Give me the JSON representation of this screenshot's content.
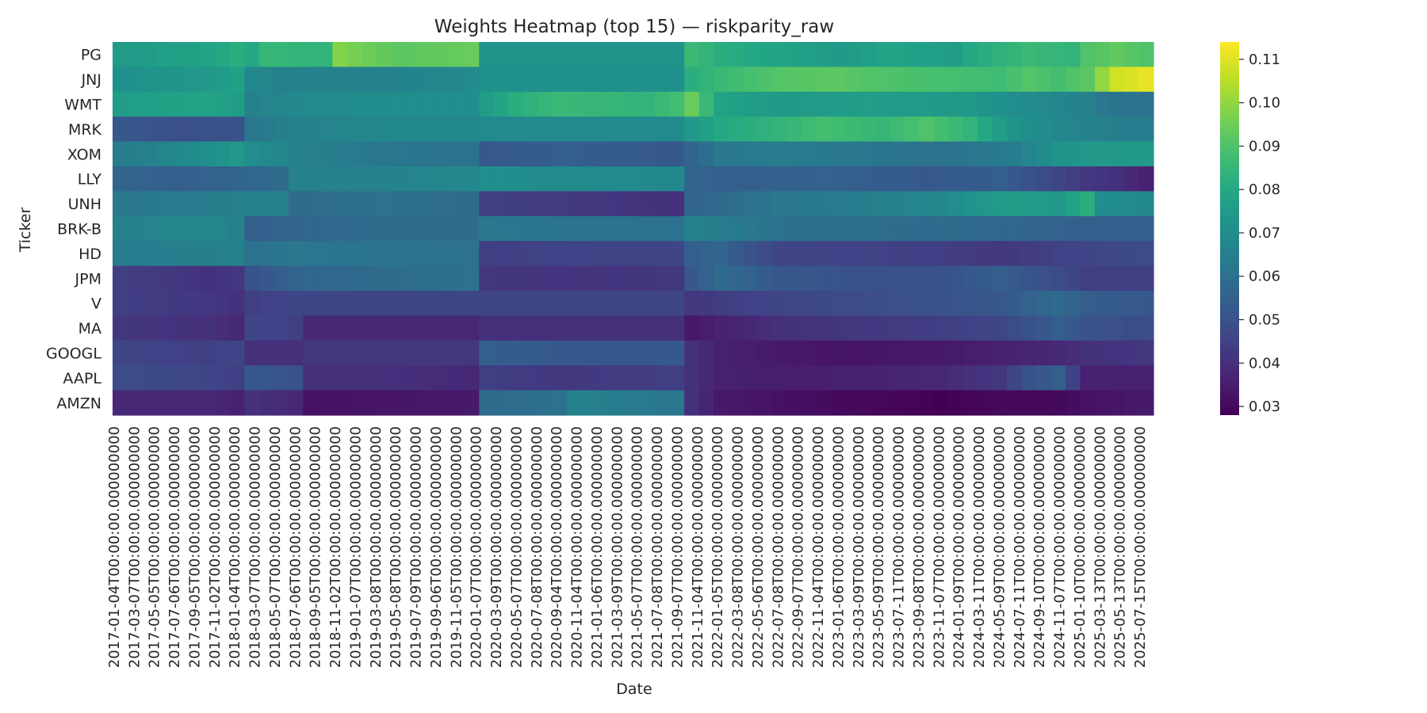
{
  "chart_data": {
    "type": "heatmap",
    "title": "Weights Heatmap (top 15) — riskparity_raw",
    "xlabel": "Date",
    "ylabel": "Ticker",
    "colormap": "viridis",
    "rows": [
      "PG",
      "JNJ",
      "WMT",
      "MRK",
      "XOM",
      "LLY",
      "UNH",
      "BRK-B",
      "HD",
      "JPM",
      "V",
      "MA",
      "GOOGL",
      "AAPL",
      "AMZN"
    ],
    "x_tick_labels": [
      "2017-01-04T00:00:00.000000000",
      "2017-03-07T00:00:00.000000000",
      "2017-05-05T00:00:00.000000000",
      "2017-07-06T00:00:00.000000000",
      "2017-09-05T00:00:00.000000000",
      "2017-11-02T00:00:00.000000000",
      "2018-01-04T00:00:00.000000000",
      "2018-03-07T00:00:00.000000000",
      "2018-05-07T00:00:00.000000000",
      "2018-07-06T00:00:00.000000000",
      "2018-09-05T00:00:00.000000000",
      "2018-11-02T00:00:00.000000000",
      "2019-01-07T00:00:00.000000000",
      "2019-03-08T00:00:00.000000000",
      "2019-05-08T00:00:00.000000000",
      "2019-07-09T00:00:00.000000000",
      "2019-09-06T00:00:00.000000000",
      "2019-11-05T00:00:00.000000000",
      "2020-01-07T00:00:00.000000000",
      "2020-03-09T00:00:00.000000000",
      "2020-05-07T00:00:00.000000000",
      "2020-07-08T00:00:00.000000000",
      "2020-09-04T00:00:00.000000000",
      "2020-11-04T00:00:00.000000000",
      "2021-01-06T00:00:00.000000000",
      "2021-03-09T00:00:00.000000000",
      "2021-05-07T00:00:00.000000000",
      "2021-07-08T00:00:00.000000000",
      "2021-09-07T00:00:00.000000000",
      "2021-11-04T00:00:00.000000000",
      "2022-01-05T00:00:00.000000000",
      "2022-03-08T00:00:00.000000000",
      "2022-05-06T00:00:00.000000000",
      "2022-07-08T00:00:00.000000000",
      "2022-09-07T00:00:00.000000000",
      "2022-11-04T00:00:00.000000000",
      "2023-01-06T00:00:00.000000000",
      "2023-03-09T00:00:00.000000000",
      "2023-05-09T00:00:00.000000000",
      "2023-07-11T00:00:00.000000000",
      "2023-09-08T00:00:00.000000000",
      "2023-11-07T00:00:00.000000000",
      "2024-01-09T00:00:00.000000000",
      "2024-03-11T00:00:00.000000000",
      "2024-05-09T00:00:00.000000000",
      "2024-07-11T00:00:00.000000000",
      "2024-09-10T00:00:00.000000000",
      "2024-11-07T00:00:00.000000000",
      "2025-01-10T00:00:00.000000000",
      "2025-03-13T00:00:00.000000000",
      "2025-05-13T00:00:00.000000000",
      "2025-07-15T00:00:00.000000000"
    ],
    "colorbar": {
      "ticks": [
        0.03,
        0.04,
        0.05,
        0.06,
        0.07,
        0.08,
        0.09,
        0.1,
        0.11
      ],
      "range": [
        0.028,
        0.114
      ]
    },
    "row_profiles": [
      [
        [
          0,
          0.075
        ],
        [
          6,
          0.078
        ],
        [
          8,
          0.082
        ],
        [
          9,
          0.08
        ],
        [
          10,
          0.085
        ],
        [
          14,
          0.084
        ],
        [
          15,
          0.098
        ],
        [
          16,
          0.096
        ],
        [
          19,
          0.092
        ],
        [
          24,
          0.094
        ],
        [
          25,
          0.072
        ],
        [
          38,
          0.072
        ],
        [
          39,
          0.086
        ],
        [
          41,
          0.082
        ],
        [
          45,
          0.078
        ],
        [
          48,
          0.076
        ],
        [
          49,
          0.074
        ],
        [
          52,
          0.078
        ],
        [
          57,
          0.076
        ],
        [
          58,
          0.08
        ],
        [
          62,
          0.086
        ],
        [
          65,
          0.084
        ],
        [
          66,
          0.09
        ],
        [
          68,
          0.093
        ],
        [
          70,
          0.09
        ]
      ],
      [
        [
          0,
          0.071
        ],
        [
          6,
          0.074
        ],
        [
          8,
          0.077
        ],
        [
          9,
          0.068
        ],
        [
          11,
          0.066
        ],
        [
          18,
          0.066
        ],
        [
          23,
          0.068
        ],
        [
          25,
          0.071
        ],
        [
          38,
          0.071
        ],
        [
          39,
          0.082
        ],
        [
          41,
          0.086
        ],
        [
          45,
          0.091
        ],
        [
          49,
          0.092
        ],
        [
          52,
          0.09
        ],
        [
          60,
          0.087
        ],
        [
          62,
          0.091
        ],
        [
          64,
          0.088
        ],
        [
          66,
          0.092
        ],
        [
          68,
          0.108
        ],
        [
          70,
          0.111
        ]
      ],
      [
        [
          0,
          0.076
        ],
        [
          6,
          0.078
        ],
        [
          8,
          0.076
        ],
        [
          9,
          0.066
        ],
        [
          12,
          0.068
        ],
        [
          18,
          0.07
        ],
        [
          24,
          0.07
        ],
        [
          25,
          0.076
        ],
        [
          27,
          0.082
        ],
        [
          30,
          0.086
        ],
        [
          36,
          0.084
        ],
        [
          38,
          0.088
        ],
        [
          39,
          0.094
        ],
        [
          41,
          0.078
        ],
        [
          45,
          0.074
        ],
        [
          50,
          0.076
        ],
        [
          58,
          0.074
        ],
        [
          61,
          0.07
        ],
        [
          66,
          0.066
        ],
        [
          67,
          0.062
        ],
        [
          70,
          0.06
        ]
      ],
      [
        [
          0,
          0.052
        ],
        [
          4,
          0.049
        ],
        [
          8,
          0.05
        ],
        [
          9,
          0.062
        ],
        [
          12,
          0.066
        ],
        [
          18,
          0.068
        ],
        [
          24,
          0.068
        ],
        [
          25,
          0.069
        ],
        [
          38,
          0.069
        ],
        [
          39,
          0.074
        ],
        [
          41,
          0.08
        ],
        [
          45,
          0.084
        ],
        [
          48,
          0.088
        ],
        [
          52,
          0.085
        ],
        [
          55,
          0.09
        ],
        [
          58,
          0.084
        ],
        [
          61,
          0.072
        ],
        [
          64,
          0.068
        ],
        [
          66,
          0.066
        ],
        [
          70,
          0.064
        ]
      ],
      [
        [
          0,
          0.064
        ],
        [
          4,
          0.068
        ],
        [
          7,
          0.072
        ],
        [
          8,
          0.074
        ],
        [
          9,
          0.07
        ],
        [
          12,
          0.066
        ],
        [
          18,
          0.062
        ],
        [
          24,
          0.06
        ],
        [
          25,
          0.052
        ],
        [
          30,
          0.054
        ],
        [
          38,
          0.052
        ],
        [
          39,
          0.056
        ],
        [
          41,
          0.062
        ],
        [
          45,
          0.064
        ],
        [
          50,
          0.062
        ],
        [
          56,
          0.06
        ],
        [
          61,
          0.064
        ],
        [
          64,
          0.072
        ],
        [
          66,
          0.074
        ],
        [
          70,
          0.074
        ]
      ],
      [
        [
          0,
          0.056
        ],
        [
          4,
          0.054
        ],
        [
          8,
          0.056
        ],
        [
          11,
          0.058
        ],
        [
          12,
          0.066
        ],
        [
          18,
          0.066
        ],
        [
          24,
          0.068
        ],
        [
          25,
          0.07
        ],
        [
          38,
          0.068
        ],
        [
          39,
          0.056
        ],
        [
          41,
          0.054
        ],
        [
          48,
          0.055
        ],
        [
          55,
          0.052
        ],
        [
          60,
          0.054
        ],
        [
          62,
          0.05
        ],
        [
          66,
          0.042
        ],
        [
          68,
          0.04
        ],
        [
          70,
          0.036
        ]
      ],
      [
        [
          0,
          0.062
        ],
        [
          6,
          0.064
        ],
        [
          9,
          0.066
        ],
        [
          11,
          0.066
        ],
        [
          12,
          0.058
        ],
        [
          18,
          0.06
        ],
        [
          24,
          0.058
        ],
        [
          25,
          0.044
        ],
        [
          30,
          0.043
        ],
        [
          38,
          0.04
        ],
        [
          39,
          0.056
        ],
        [
          41,
          0.058
        ],
        [
          45,
          0.062
        ],
        [
          50,
          0.064
        ],
        [
          56,
          0.068
        ],
        [
          58,
          0.072
        ],
        [
          61,
          0.076
        ],
        [
          64,
          0.074
        ],
        [
          66,
          0.082
        ],
        [
          67,
          0.07
        ],
        [
          70,
          0.068
        ]
      ],
      [
        [
          0,
          0.066
        ],
        [
          6,
          0.068
        ],
        [
          8,
          0.066
        ],
        [
          9,
          0.054
        ],
        [
          12,
          0.056
        ],
        [
          18,
          0.058
        ],
        [
          24,
          0.058
        ],
        [
          25,
          0.062
        ],
        [
          38,
          0.06
        ],
        [
          39,
          0.066
        ],
        [
          41,
          0.064
        ],
        [
          45,
          0.06
        ],
        [
          56,
          0.058
        ],
        [
          62,
          0.056
        ],
        [
          66,
          0.054
        ],
        [
          70,
          0.054
        ]
      ],
      [
        [
          0,
          0.064
        ],
        [
          6,
          0.065
        ],
        [
          8,
          0.066
        ],
        [
          9,
          0.06
        ],
        [
          12,
          0.062
        ],
        [
          18,
          0.061
        ],
        [
          24,
          0.06
        ],
        [
          25,
          0.044
        ],
        [
          30,
          0.045
        ],
        [
          38,
          0.046
        ],
        [
          39,
          0.054
        ],
        [
          41,
          0.056
        ],
        [
          43,
          0.05
        ],
        [
          45,
          0.046
        ],
        [
          50,
          0.045
        ],
        [
          56,
          0.044
        ],
        [
          60,
          0.042
        ],
        [
          66,
          0.046
        ],
        [
          70,
          0.048
        ]
      ],
      [
        [
          0,
          0.044
        ],
        [
          4,
          0.042
        ],
        [
          6,
          0.04
        ],
        [
          8,
          0.042
        ],
        [
          9,
          0.05
        ],
        [
          12,
          0.056
        ],
        [
          18,
          0.058
        ],
        [
          24,
          0.06
        ],
        [
          25,
          0.042
        ],
        [
          30,
          0.041
        ],
        [
          38,
          0.042
        ],
        [
          39,
          0.052
        ],
        [
          41,
          0.058
        ],
        [
          45,
          0.052
        ],
        [
          50,
          0.05
        ],
        [
          56,
          0.05
        ],
        [
          60,
          0.054
        ],
        [
          64,
          0.048
        ],
        [
          66,
          0.044
        ],
        [
          70,
          0.044
        ]
      ],
      [
        [
          0,
          0.044
        ],
        [
          6,
          0.042
        ],
        [
          8,
          0.04
        ],
        [
          9,
          0.044
        ],
        [
          12,
          0.046
        ],
        [
          18,
          0.046
        ],
        [
          24,
          0.046
        ],
        [
          25,
          0.046
        ],
        [
          38,
          0.046
        ],
        [
          39,
          0.042
        ],
        [
          45,
          0.046
        ],
        [
          50,
          0.048
        ],
        [
          56,
          0.05
        ],
        [
          60,
          0.052
        ],
        [
          64,
          0.058
        ],
        [
          66,
          0.054
        ],
        [
          70,
          0.052
        ]
      ],
      [
        [
          0,
          0.042
        ],
        [
          6,
          0.04
        ],
        [
          8,
          0.038
        ],
        [
          9,
          0.046
        ],
        [
          12,
          0.044
        ],
        [
          13,
          0.038
        ],
        [
          18,
          0.038
        ],
        [
          24,
          0.038
        ],
        [
          25,
          0.04
        ],
        [
          38,
          0.04
        ],
        [
          39,
          0.034
        ],
        [
          41,
          0.036
        ],
        [
          45,
          0.04
        ],
        [
          50,
          0.042
        ],
        [
          56,
          0.044
        ],
        [
          60,
          0.046
        ],
        [
          64,
          0.054
        ],
        [
          66,
          0.05
        ],
        [
          70,
          0.048
        ]
      ],
      [
        [
          0,
          0.046
        ],
        [
          6,
          0.044
        ],
        [
          8,
          0.046
        ],
        [
          9,
          0.04
        ],
        [
          12,
          0.04
        ],
        [
          13,
          0.042
        ],
        [
          18,
          0.042
        ],
        [
          24,
          0.042
        ],
        [
          25,
          0.054
        ],
        [
          30,
          0.052
        ],
        [
          38,
          0.052
        ],
        [
          39,
          0.04
        ],
        [
          41,
          0.036
        ],
        [
          45,
          0.034
        ],
        [
          50,
          0.033
        ],
        [
          56,
          0.034
        ],
        [
          60,
          0.036
        ],
        [
          64,
          0.038
        ],
        [
          66,
          0.04
        ],
        [
          70,
          0.042
        ]
      ],
      [
        [
          0,
          0.048
        ],
        [
          6,
          0.046
        ],
        [
          8,
          0.044
        ],
        [
          9,
          0.052
        ],
        [
          12,
          0.05
        ],
        [
          13,
          0.04
        ],
        [
          18,
          0.04
        ],
        [
          24,
          0.038
        ],
        [
          25,
          0.044
        ],
        [
          30,
          0.042
        ],
        [
          38,
          0.044
        ],
        [
          39,
          0.04
        ],
        [
          41,
          0.036
        ],
        [
          45,
          0.035
        ],
        [
          50,
          0.036
        ],
        [
          56,
          0.038
        ],
        [
          60,
          0.042
        ],
        [
          62,
          0.05
        ],
        [
          64,
          0.054
        ],
        [
          66,
          0.036
        ],
        [
          70,
          0.036
        ]
      ],
      [
        [
          0,
          0.038
        ],
        [
          6,
          0.038
        ],
        [
          8,
          0.036
        ],
        [
          9,
          0.04
        ],
        [
          12,
          0.038
        ],
        [
          13,
          0.032
        ],
        [
          18,
          0.033
        ],
        [
          24,
          0.034
        ],
        [
          25,
          0.058
        ],
        [
          30,
          0.06
        ],
        [
          31,
          0.066
        ],
        [
          38,
          0.062
        ],
        [
          39,
          0.04
        ],
        [
          41,
          0.034
        ],
        [
          45,
          0.032
        ],
        [
          50,
          0.03
        ],
        [
          54,
          0.029
        ],
        [
          56,
          0.028
        ],
        [
          60,
          0.03
        ],
        [
          64,
          0.03
        ],
        [
          66,
          0.032
        ],
        [
          70,
          0.034
        ]
      ]
    ]
  }
}
